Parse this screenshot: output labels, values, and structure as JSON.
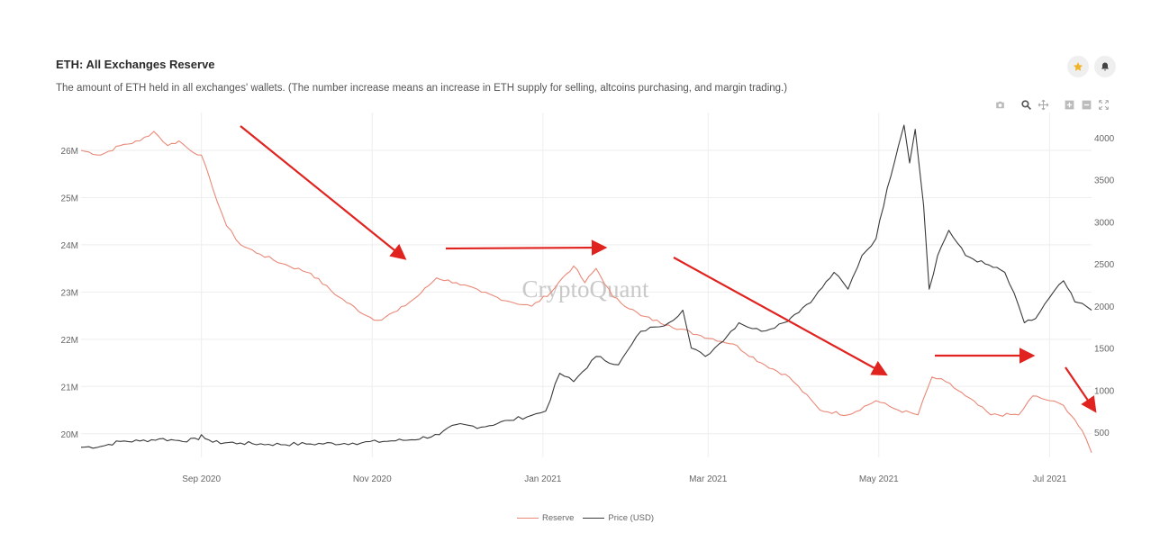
{
  "header": {
    "title": "ETH: All Exchanges Reserve",
    "description": "The amount of ETH held in all exchanges' wallets. (The number increase means an increase in ETH supply for selling, altcoins purchasing, and margin trading.)"
  },
  "icons": {
    "favorite": "star-icon",
    "alert": "bell-icon",
    "toolbar": [
      "camera-icon",
      "zoom-icon",
      "pan-icon",
      "zoom-in-icon",
      "zoom-out-icon",
      "autoscale-icon"
    ]
  },
  "colors": {
    "reserve": "#e98877",
    "price": "#3a3a3a",
    "arrows": "#e0231f",
    "star": "#f0b428"
  },
  "watermark": "CryptoQuant",
  "chart_data": {
    "type": "line",
    "title": "ETH: All Exchanges Reserve",
    "x_range": [
      "2020-07-20",
      "2021-07-16"
    ],
    "x_ticks": [
      "Sep 2020",
      "Nov 2020",
      "Jan 2021",
      "Mar 2021",
      "May 2021",
      "Jul 2021"
    ],
    "y_left": {
      "label": "",
      "ticks": [
        "20M",
        "21M",
        "22M",
        "23M",
        "24M",
        "25M",
        "26M"
      ],
      "range": [
        19.5,
        26.8
      ]
    },
    "y_right": {
      "label": "",
      "ticks": [
        "500",
        "1000",
        "1500",
        "2000",
        "2500",
        "3000",
        "3500",
        "4000"
      ],
      "range": [
        200,
        4300
      ]
    },
    "grid": true,
    "legend_position": "bottom",
    "series": [
      {
        "name": "Reserve",
        "axis": "left",
        "x": [
          "2020-07-20",
          "2020-07-27",
          "2020-08-03",
          "2020-08-10",
          "2020-08-15",
          "2020-08-20",
          "2020-08-24",
          "2020-08-28",
          "2020-09-01",
          "2020-09-05",
          "2020-09-10",
          "2020-09-15",
          "2020-09-22",
          "2020-09-30",
          "2020-10-10",
          "2020-10-20",
          "2020-10-30",
          "2020-11-03",
          "2020-11-10",
          "2020-11-17",
          "2020-11-24",
          "2020-12-01",
          "2020-12-10",
          "2020-12-20",
          "2020-12-28",
          "2021-01-04",
          "2021-01-08",
          "2021-01-12",
          "2021-01-16",
          "2021-01-20",
          "2021-01-26",
          "2021-02-05",
          "2021-02-15",
          "2021-02-25",
          "2021-03-10",
          "2021-03-20",
          "2021-03-30",
          "2021-04-10",
          "2021-04-20",
          "2021-04-30",
          "2021-05-08",
          "2021-05-15",
          "2021-05-20",
          "2021-05-25",
          "2021-06-01",
          "2021-06-10",
          "2021-06-20",
          "2021-06-25",
          "2021-07-01",
          "2021-07-06",
          "2021-07-10",
          "2021-07-14",
          "2021-07-16"
        ],
        "values": [
          26.0,
          25.9,
          26.1,
          26.2,
          26.4,
          26.1,
          26.2,
          26.0,
          25.9,
          25.2,
          24.4,
          24.0,
          23.8,
          23.6,
          23.4,
          22.9,
          22.5,
          22.4,
          22.6,
          22.9,
          23.3,
          23.2,
          23.0,
          22.8,
          22.7,
          23.0,
          23.3,
          23.55,
          23.2,
          23.5,
          22.9,
          22.5,
          22.3,
          22.1,
          21.9,
          21.5,
          21.2,
          20.5,
          20.4,
          20.7,
          20.5,
          20.4,
          21.2,
          21.1,
          20.8,
          20.4,
          20.4,
          20.8,
          20.7,
          20.6,
          20.3,
          19.9,
          19.6
        ]
      },
      {
        "name": "Price (USD)",
        "axis": "right",
        "x": [
          "2020-07-20",
          "2020-07-27",
          "2020-08-03",
          "2020-08-10",
          "2020-08-17",
          "2020-08-24",
          "2020-08-31",
          "2020-09-01",
          "2020-09-05",
          "2020-09-15",
          "2020-09-25",
          "2020-10-10",
          "2020-10-25",
          "2020-11-05",
          "2020-11-15",
          "2020-11-25",
          "2020-12-01",
          "2020-12-10",
          "2020-12-20",
          "2020-12-28",
          "2021-01-02",
          "2021-01-07",
          "2021-01-12",
          "2021-01-20",
          "2021-01-28",
          "2021-02-05",
          "2021-02-10",
          "2021-02-15",
          "2021-02-20",
          "2021-02-23",
          "2021-02-28",
          "2021-03-05",
          "2021-03-12",
          "2021-03-20",
          "2021-03-28",
          "2021-04-01",
          "2021-04-08",
          "2021-04-15",
          "2021-04-20",
          "2021-04-25",
          "2021-04-30",
          "2021-05-04",
          "2021-05-08",
          "2021-05-10",
          "2021-05-12",
          "2021-05-14",
          "2021-05-17",
          "2021-05-19",
          "2021-05-22",
          "2021-05-26",
          "2021-06-01",
          "2021-06-08",
          "2021-06-15",
          "2021-06-20",
          "2021-06-22",
          "2021-06-26",
          "2021-07-01",
          "2021-07-06",
          "2021-07-10",
          "2021-07-14",
          "2021-07-16"
        ],
        "values": [
          320,
          330,
          390,
          395,
          420,
          400,
          410,
          470,
          380,
          370,
          355,
          360,
          370,
          390,
          410,
          470,
          590,
          560,
          640,
          700,
          750,
          1200,
          1100,
          1400,
          1300,
          1700,
          1750,
          1800,
          1950,
          1500,
          1400,
          1550,
          1800,
          1700,
          1800,
          1900,
          2100,
          2400,
          2200,
          2600,
          2800,
          3400,
          3900,
          4150,
          3700,
          4100,
          3200,
          2200,
          2600,
          2900,
          2600,
          2500,
          2400,
          2000,
          1800,
          1850,
          2100,
          2300,
          2050,
          2000,
          1950
        ]
      }
    ]
  },
  "legend": {
    "items": [
      "Reserve",
      "Price (USD)"
    ]
  }
}
